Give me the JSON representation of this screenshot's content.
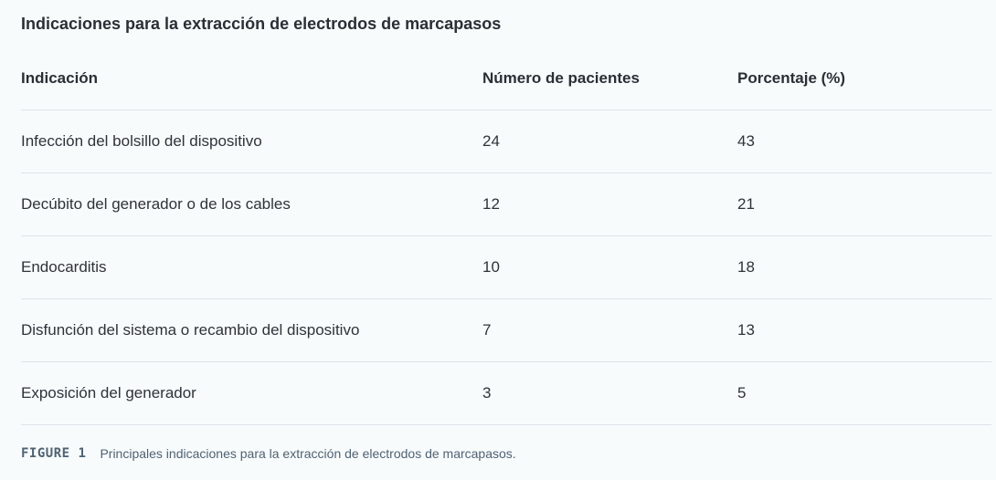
{
  "title": "Indicaciones para la extracción de electrodos de marcapasos",
  "table": {
    "headers": [
      "Indicación",
      "Número de pacientes",
      "Porcentaje (%)"
    ],
    "rows": [
      [
        "Infección del bolsillo del dispositivo",
        "24",
        "43"
      ],
      [
        "Decúbito del generador o de los cables",
        "12",
        "21"
      ],
      [
        "Endocarditis",
        "10",
        "18"
      ],
      [
        "Disfunción del sistema o recambio del dispositivo",
        "7",
        "13"
      ],
      [
        "Exposición del generador",
        "3",
        "5"
      ]
    ]
  },
  "caption": {
    "label": "FIGURE 1",
    "text": "Principales indicaciones para la extracción de electrodos de marcapasos."
  },
  "colors": {
    "background": "#f8fbfc",
    "text": "#2e3339",
    "divider": "#dde3e8",
    "caption": "#4f6272"
  }
}
